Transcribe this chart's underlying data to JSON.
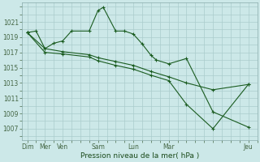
{
  "background_color": "#cce8e8",
  "grid_color": "#aacccc",
  "line_color": "#1a5c20",
  "xlabel": "Pression niveau de la mer( hPa )",
  "ylim": [
    1005.5,
    1023.5
  ],
  "yticks": [
    1007,
    1009,
    1011,
    1013,
    1015,
    1017,
    1019,
    1021
  ],
  "xlim": [
    -0.3,
    13.0
  ],
  "series1": {
    "x": [
      0,
      0.5,
      1,
      1.5,
      2,
      2.5,
      3.5,
      4,
      4.3,
      5,
      5.5,
      6,
      6.5,
      7,
      7.3,
      8,
      9,
      10.5,
      12.5
    ],
    "y": [
      1019.6,
      1019.8,
      1017.5,
      1018.2,
      1018.5,
      1019.8,
      1019.8,
      1022.5,
      1022.9,
      1019.8,
      1019.8,
      1019.4,
      1018.1,
      1016.6,
      1016.0,
      1015.5,
      1016.2,
      1009.2,
      1007.2
    ]
  },
  "series2": {
    "x": [
      0,
      1,
      2,
      3.5,
      4,
      5,
      6,
      7,
      8,
      9,
      10.5,
      12.5
    ],
    "y": [
      1019.6,
      1017.5,
      1017.1,
      1016.7,
      1016.3,
      1015.8,
      1015.3,
      1014.5,
      1013.8,
      1013.0,
      1012.1,
      1012.8
    ]
  },
  "series3": {
    "x": [
      0,
      1,
      2,
      3.5,
      4,
      5,
      6,
      7,
      8,
      9,
      10.5,
      12.5
    ],
    "y": [
      1019.6,
      1017.0,
      1016.8,
      1016.4,
      1015.9,
      1015.3,
      1014.8,
      1014.0,
      1013.3,
      1010.2,
      1007.0,
      1012.8
    ]
  },
  "major_xtick_pos": [
    0,
    1,
    2,
    4,
    6,
    8,
    10.5,
    12.5
  ],
  "major_xtick_labels": [
    "Dim",
    "Mer",
    "Ven",
    "Sam",
    "Lun",
    "Mar",
    "",
    "Jeu"
  ],
  "figsize": [
    3.2,
    2.0
  ],
  "dpi": 100
}
